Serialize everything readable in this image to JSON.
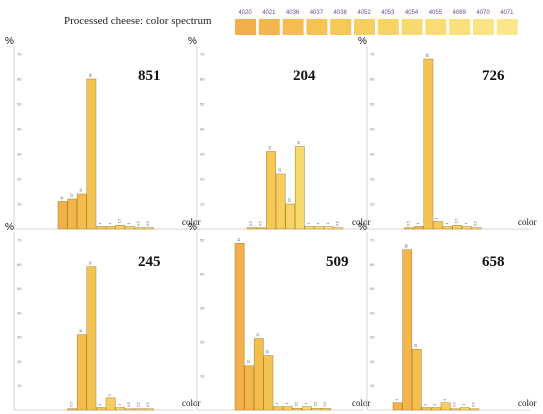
{
  "legend": {
    "title": "Processed cheese: color spectrum",
    "codes": [
      "4020",
      "4021",
      "4036",
      "4037",
      "4038",
      "4052",
      "4053",
      "4054",
      "4055",
      "4069",
      "4070",
      "4071"
    ],
    "colors": [
      "#f2b04a",
      "#f3b64c",
      "#f4bd4e",
      "#f5c352",
      "#f6c956",
      "#f6cf5e",
      "#f7d465",
      "#f8d96d",
      "#f9dd74",
      "#f9e07b",
      "#fae483",
      "#fbe78b"
    ]
  },
  "chart_data": [
    {
      "type": "bar",
      "title": "851",
      "ylabel": "%",
      "xlabel": "color",
      "ylim": [
        0,
        70
      ],
      "categories": [
        "4020",
        "4021",
        "4036",
        "4037",
        "4038",
        "4052",
        "4053",
        "4054",
        "4055",
        "4069",
        "4070",
        "4071"
      ],
      "values": [
        11,
        12,
        14,
        60,
        1,
        1,
        1.5,
        1,
        0.5,
        0.5,
        0,
        0
      ]
    },
    {
      "type": "bar",
      "title": "204",
      "ylabel": "%",
      "xlabel": "color",
      "ylim": [
        0,
        70
      ],
      "categories": [
        "4020",
        "4021",
        "4036",
        "4037",
        "4038",
        "4052",
        "4053",
        "4054",
        "4055",
        "4069",
        "4070",
        "4071"
      ],
      "values": [
        0,
        0,
        0.5,
        0.5,
        31,
        22,
        10,
        33,
        1,
        1,
        1,
        0.5
      ]
    },
    {
      "type": "bar",
      "title": "726",
      "ylabel": "%",
      "xlabel": "color",
      "ylim": [
        0,
        70
      ],
      "categories": [
        "4020",
        "4021",
        "4036",
        "4037",
        "4038",
        "4052",
        "4053",
        "4054",
        "4055",
        "4069",
        "4070",
        "4071"
      ],
      "values": [
        0,
        0.5,
        1,
        68,
        3,
        1,
        1.5,
        1,
        0.5,
        0,
        0,
        0
      ]
    },
    {
      "type": "bar",
      "title": "245",
      "ylabel": "%",
      "xlabel": "color",
      "ylim": [
        0,
        70
      ],
      "categories": [
        "4020",
        "4021",
        "4036",
        "4037",
        "4038",
        "4052",
        "4053",
        "4054",
        "4055",
        "4069",
        "4070",
        "4071"
      ],
      "values": [
        0,
        0.5,
        31,
        59,
        1,
        5,
        1,
        0.5,
        0.5,
        0.5,
        0,
        0
      ]
    },
    {
      "type": "bar",
      "title": "509",
      "ylabel": "%",
      "xlabel": "color",
      "ylim": [
        0,
        50
      ],
      "categories": [
        "4020",
        "4021",
        "4036",
        "4037",
        "4038",
        "4052",
        "4053",
        "4054",
        "4055",
        "4069",
        "4070",
        "4071"
      ],
      "values": [
        49,
        13,
        21,
        16,
        1,
        1,
        0.5,
        1,
        0.5,
        0.5,
        0,
        0
      ]
    },
    {
      "type": "bar",
      "title": "658",
      "ylabel": "%",
      "xlabel": "color",
      "ylim": [
        0,
        70
      ],
      "categories": [
        "4020",
        "4021",
        "4036",
        "4037",
        "4038",
        "4052",
        "4053",
        "4054",
        "4055",
        "4069",
        "4070",
        "4071"
      ],
      "values": [
        3,
        66,
        25,
        1,
        1,
        3,
        0.5,
        1,
        0.5,
        0,
        0,
        0
      ]
    }
  ]
}
